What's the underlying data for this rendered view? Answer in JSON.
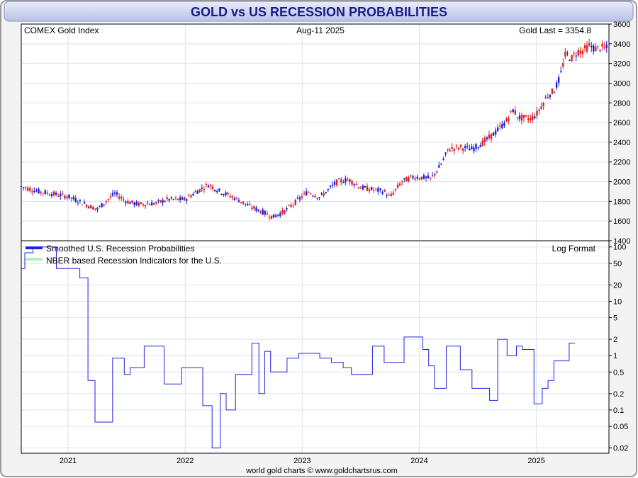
{
  "title": "GOLD vs US RECESSION PROBABILITIES",
  "footer": "world gold charts © www.goldchartsrus.com",
  "colors": {
    "title_text": "#1a1a8c",
    "candle_up": "#1f1fe0",
    "candle_down": "#e01f1f",
    "recession_line": "#2222dd",
    "nber_legend": "#b3f0b3",
    "grid": "#d8e3ee"
  },
  "chart_data": [
    {
      "type": "candlestick",
      "title": "COMEX Gold Index",
      "date_label": "Aug-11  2025",
      "last_label": "Gold Last = 3354.8",
      "y_axis_side": "right",
      "yticks": [
        1400,
        1600,
        1800,
        2000,
        2200,
        2400,
        2600,
        2800,
        3000,
        3200,
        3400,
        3600
      ],
      "ylim": [
        1400,
        3600
      ],
      "xlim": [
        2020.6,
        2025.62
      ],
      "grid": true,
      "series_close_approx": [
        {
          "x": 2020.6,
          "y": 1950
        },
        {
          "x": 2020.75,
          "y": 1900
        },
        {
          "x": 2020.9,
          "y": 1870
        },
        {
          "x": 2021.0,
          "y": 1850
        },
        {
          "x": 2021.15,
          "y": 1770
        },
        {
          "x": 2021.25,
          "y": 1720
        },
        {
          "x": 2021.35,
          "y": 1830
        },
        {
          "x": 2021.4,
          "y": 1880
        },
        {
          "x": 2021.5,
          "y": 1800
        },
        {
          "x": 2021.6,
          "y": 1770
        },
        {
          "x": 2021.75,
          "y": 1780
        },
        {
          "x": 2021.85,
          "y": 1820
        },
        {
          "x": 2022.0,
          "y": 1820
        },
        {
          "x": 2022.1,
          "y": 1900
        },
        {
          "x": 2022.2,
          "y": 1970
        },
        {
          "x": 2022.3,
          "y": 1900
        },
        {
          "x": 2022.45,
          "y": 1820
        },
        {
          "x": 2022.55,
          "y": 1750
        },
        {
          "x": 2022.65,
          "y": 1700
        },
        {
          "x": 2022.75,
          "y": 1640
        },
        {
          "x": 2022.85,
          "y": 1700
        },
        {
          "x": 2022.95,
          "y": 1800
        },
        {
          "x": 2023.05,
          "y": 1900
        },
        {
          "x": 2023.15,
          "y": 1840
        },
        {
          "x": 2023.3,
          "y": 2000
        },
        {
          "x": 2023.4,
          "y": 2020
        },
        {
          "x": 2023.5,
          "y": 1940
        },
        {
          "x": 2023.6,
          "y": 1920
        },
        {
          "x": 2023.7,
          "y": 1900
        },
        {
          "x": 2023.75,
          "y": 1840
        },
        {
          "x": 2023.85,
          "y": 2000
        },
        {
          "x": 2023.95,
          "y": 2050
        },
        {
          "x": 2024.05,
          "y": 2040
        },
        {
          "x": 2024.1,
          "y": 2030
        },
        {
          "x": 2024.18,
          "y": 2160
        },
        {
          "x": 2024.25,
          "y": 2330
        },
        {
          "x": 2024.35,
          "y": 2350
        },
        {
          "x": 2024.45,
          "y": 2330
        },
        {
          "x": 2024.55,
          "y": 2400
        },
        {
          "x": 2024.65,
          "y": 2500
        },
        {
          "x": 2024.75,
          "y": 2620
        },
        {
          "x": 2024.8,
          "y": 2730
        },
        {
          "x": 2024.85,
          "y": 2650
        },
        {
          "x": 2024.95,
          "y": 2640
        },
        {
          "x": 2025.0,
          "y": 2680
        },
        {
          "x": 2025.05,
          "y": 2780
        },
        {
          "x": 2025.1,
          "y": 2880
        },
        {
          "x": 2025.15,
          "y": 2920
        },
        {
          "x": 2025.2,
          "y": 3050
        },
        {
          "x": 2025.25,
          "y": 3300
        },
        {
          "x": 2025.3,
          "y": 3250
        },
        {
          "x": 2025.35,
          "y": 3320
        },
        {
          "x": 2025.4,
          "y": 3330
        },
        {
          "x": 2025.45,
          "y": 3380
        },
        {
          "x": 2025.5,
          "y": 3350
        },
        {
          "x": 2025.55,
          "y": 3360
        },
        {
          "x": 2025.6,
          "y": 3354.8
        }
      ]
    },
    {
      "type": "line",
      "scale": "log",
      "scale_label": "Log Format",
      "y_axis_side": "right",
      "yticks": [
        0.02,
        0.05,
        0.1,
        0.2,
        0.5,
        1,
        2,
        5,
        10,
        20,
        50,
        100
      ],
      "ytick_labels": [
        "0.02",
        "0.05",
        "0.1",
        "0.2",
        "0.5",
        "1",
        "2",
        "5",
        "10",
        "20",
        "50",
        "100"
      ],
      "ylim": [
        0.016,
        130
      ],
      "xlim": [
        2020.6,
        2025.62
      ],
      "xticks": [
        2021,
        2022,
        2023,
        2024,
        2025
      ],
      "xtick_labels": [
        "2021",
        "2022",
        "2023",
        "2024",
        "2025"
      ],
      "grid": true,
      "legend": [
        "Smoothed U.S. Recession Probabilities",
        "NBER based Recession Indicators for the U.S."
      ],
      "series": [
        {
          "name": "Smoothed U.S. Recession Probabilities",
          "points": [
            [
              2020.6,
              40
            ],
            [
              2020.63,
              40
            ],
            [
              2020.63,
              78
            ],
            [
              2020.7,
              78
            ],
            [
              2020.7,
              100
            ],
            [
              2020.9,
              100
            ],
            [
              2020.9,
              40
            ],
            [
              2021.1,
              40
            ],
            [
              2021.1,
              27
            ],
            [
              2021.17,
              27
            ],
            [
              2021.17,
              0.35
            ],
            [
              2021.23,
              0.35
            ],
            [
              2021.23,
              0.06
            ],
            [
              2021.38,
              0.06
            ],
            [
              2021.38,
              0.9
            ],
            [
              2021.48,
              0.9
            ],
            [
              2021.48,
              0.45
            ],
            [
              2021.53,
              0.45
            ],
            [
              2021.53,
              0.6
            ],
            [
              2021.65,
              0.6
            ],
            [
              2021.65,
              1.5
            ],
            [
              2021.82,
              1.5
            ],
            [
              2021.82,
              0.3
            ],
            [
              2021.97,
              0.3
            ],
            [
              2021.97,
              0.6
            ],
            [
              2022.15,
              0.6
            ],
            [
              2022.15,
              0.12
            ],
            [
              2022.23,
              0.12
            ],
            [
              2022.23,
              0.02
            ],
            [
              2022.3,
              0.02
            ],
            [
              2022.3,
              0.2
            ],
            [
              2022.35,
              0.2
            ],
            [
              2022.35,
              0.1
            ],
            [
              2022.43,
              0.1
            ],
            [
              2022.43,
              0.45
            ],
            [
              2022.57,
              0.45
            ],
            [
              2022.57,
              1.7
            ],
            [
              2022.63,
              1.7
            ],
            [
              2022.63,
              0.2
            ],
            [
              2022.68,
              0.2
            ],
            [
              2022.68,
              1.2
            ],
            [
              2022.73,
              1.2
            ],
            [
              2022.73,
              0.5
            ],
            [
              2022.87,
              0.5
            ],
            [
              2022.87,
              0.9
            ],
            [
              2022.97,
              0.9
            ],
            [
              2022.97,
              1.1
            ],
            [
              2023.15,
              1.1
            ],
            [
              2023.15,
              0.9
            ],
            [
              2023.25,
              0.9
            ],
            [
              2023.25,
              0.75
            ],
            [
              2023.35,
              0.75
            ],
            [
              2023.35,
              0.6
            ],
            [
              2023.42,
              0.6
            ],
            [
              2023.42,
              0.45
            ],
            [
              2023.6,
              0.45
            ],
            [
              2023.6,
              1.5
            ],
            [
              2023.7,
              1.5
            ],
            [
              2023.7,
              0.75
            ],
            [
              2023.87,
              0.75
            ],
            [
              2023.87,
              2.2
            ],
            [
              2024.03,
              2.2
            ],
            [
              2024.03,
              1.3
            ],
            [
              2024.08,
              1.3
            ],
            [
              2024.08,
              0.65
            ],
            [
              2024.13,
              0.65
            ],
            [
              2024.13,
              0.25
            ],
            [
              2024.23,
              0.25
            ],
            [
              2024.23,
              1.5
            ],
            [
              2024.35,
              1.5
            ],
            [
              2024.35,
              0.55
            ],
            [
              2024.45,
              0.55
            ],
            [
              2024.45,
              0.25
            ],
            [
              2024.6,
              0.25
            ],
            [
              2024.6,
              0.15
            ],
            [
              2024.67,
              0.15
            ],
            [
              2024.67,
              2.0
            ],
            [
              2024.75,
              2.0
            ],
            [
              2024.75,
              1.0
            ],
            [
              2024.83,
              1.0
            ],
            [
              2024.83,
              1.5
            ],
            [
              2024.88,
              1.5
            ],
            [
              2024.88,
              1.3
            ],
            [
              2024.98,
              1.3
            ],
            [
              2024.98,
              0.13
            ],
            [
              2025.05,
              0.13
            ],
            [
              2025.05,
              0.25
            ],
            [
              2025.1,
              0.25
            ],
            [
              2025.1,
              0.35
            ],
            [
              2025.15,
              0.35
            ],
            [
              2025.15,
              0.8
            ],
            [
              2025.28,
              0.8
            ],
            [
              2025.28,
              1.7
            ],
            [
              2025.33,
              1.7
            ]
          ]
        }
      ]
    }
  ]
}
